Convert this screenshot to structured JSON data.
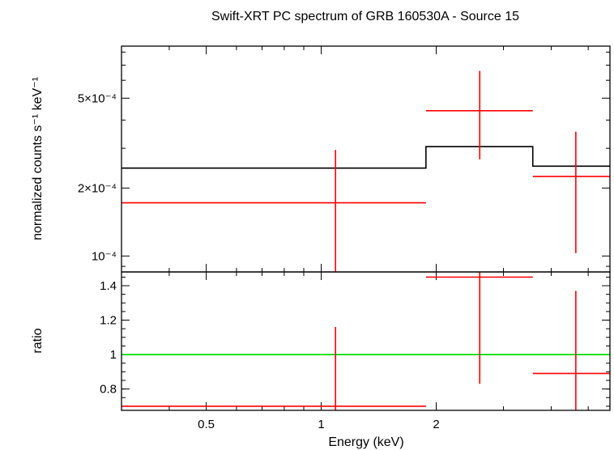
{
  "chart_data": [
    {
      "type": "scatter",
      "title": "Swift-XRT PC spectrum of GRB 160530A - Source 15",
      "xlabel": "",
      "ylabel": "normalized counts s⁻¹ keV⁻¹",
      "xscale": "log",
      "yscale": "log",
      "xlim": [
        0.3,
        5.7
      ],
      "ylim": [
        8.5e-05,
        0.00085
      ],
      "yticks": [
        0.0001,
        0.0002,
        0.0005
      ],
      "yticklabels": [
        "10⁻⁴",
        "2×10⁻⁴",
        "5×10⁻⁴"
      ],
      "colors": {
        "data": "#ff0000",
        "model": "#000000"
      },
      "series": [
        {
          "kind": "errorbar",
          "points": [
            {
              "x": 1.09,
              "xlo": 0.3,
              "xhi": 1.88,
              "y": 0.000172,
              "ylo": 8.5e-05,
              "yhi": 0.000295
            },
            {
              "x": 2.6,
              "xlo": 1.88,
              "xhi": 3.58,
              "y": 0.00044,
              "ylo": 0.000268,
              "yhi": 0.00066
            },
            {
              "x": 4.64,
              "xlo": 3.58,
              "xhi": 5.7,
              "y": 0.000225,
              "ylo": 0.000103,
              "yhi": 0.000355
            }
          ]
        },
        {
          "kind": "step",
          "steps": [
            {
              "xlo": 0.3,
              "xhi": 1.88,
              "y": 0.000245
            },
            {
              "xlo": 1.88,
              "xhi": 3.58,
              "y": 0.000305
            },
            {
              "xlo": 3.58,
              "xhi": 5.7,
              "y": 0.00025
            }
          ]
        }
      ]
    },
    {
      "type": "scatter",
      "xlabel": "Energy (keV)",
      "ylabel": "ratio",
      "xscale": "log",
      "xlim": [
        0.3,
        5.7
      ],
      "ylim": [
        0.676,
        1.48
      ],
      "yticks": [
        0.8,
        1.0,
        1.2,
        1.4
      ],
      "yticklabels": [
        "0.8",
        "1",
        "1.2",
        "1.4"
      ],
      "xticks": [
        0.5,
        1,
        2
      ],
      "xticklabels": [
        "0.5",
        "1",
        "2"
      ],
      "colors": {
        "data": "#ff0000",
        "reference": "#00dd00"
      },
      "reference_line": 1,
      "series": [
        {
          "kind": "errorbar",
          "points": [
            {
              "x": 1.09,
              "xlo": 0.3,
              "xhi": 1.88,
              "y": 0.7,
              "ylo": 0.676,
              "yhi": 1.16
            },
            {
              "x": 2.6,
              "xlo": 1.88,
              "xhi": 3.58,
              "y": 1.45,
              "ylo": 0.83,
              "yhi": 1.48
            },
            {
              "x": 4.64,
              "xlo": 3.58,
              "xhi": 5.7,
              "y": 0.89,
              "ylo": 0.676,
              "yhi": 1.37
            }
          ]
        }
      ]
    }
  ]
}
